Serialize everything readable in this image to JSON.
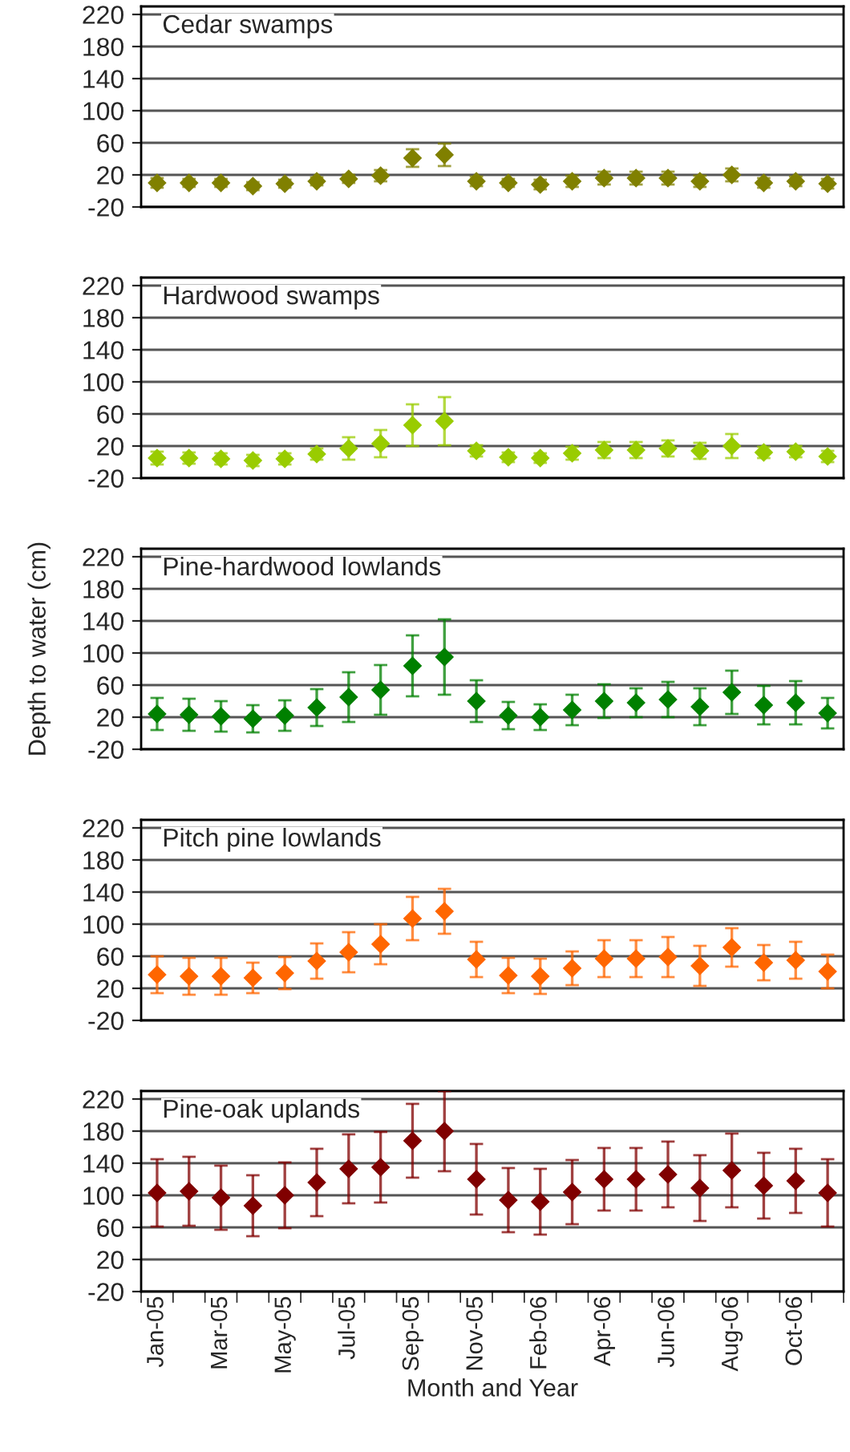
{
  "chart_data": [
    {
      "type": "scatter",
      "title": "Cedar swamps",
      "categories": [
        null,
        null,
        null,
        null,
        null,
        null,
        null,
        null,
        null,
        null,
        null,
        null,
        null,
        null,
        null,
        null,
        null,
        null,
        null,
        null,
        null,
        null
      ],
      "series": [
        {
          "color": "#808000",
          "values": [
            10,
            10,
            10,
            6,
            9,
            12,
            15,
            19,
            41,
            45,
            12,
            10,
            8,
            12,
            16,
            16,
            16,
            12,
            20,
            10,
            12,
            9
          ],
          "errors": [
            6,
            5,
            5,
            5,
            5,
            5,
            5,
            7,
            11,
            14,
            6,
            5,
            6,
            7,
            8,
            8,
            8,
            7,
            8,
            6,
            6,
            6
          ]
        }
      ],
      "ylim": [
        -20,
        230
      ],
      "yticks": [
        -20,
        20,
        60,
        100,
        140,
        180,
        220
      ],
      "grid": "y",
      "marker": "diamond",
      "tick_labels": "y"
    },
    {
      "type": "scatter",
      "title": "Hardwood swamps",
      "categories": [
        null,
        null,
        null,
        null,
        null,
        null,
        null,
        null,
        null,
        null,
        null,
        null,
        null,
        null,
        null,
        null,
        null,
        null,
        null,
        null,
        null,
        null
      ],
      "series": [
        {
          "color": "#99cc00",
          "values": [
            5,
            5,
            4,
            2,
            4,
            10,
            17,
            23,
            46,
            51,
            14,
            6,
            5,
            11,
            15,
            15,
            17,
            14,
            20,
            12,
            13,
            7
          ],
          "errors": [
            8,
            7,
            7,
            7,
            7,
            7,
            14,
            17,
            26,
            30,
            7,
            6,
            6,
            8,
            10,
            10,
            10,
            10,
            15,
            7,
            7,
            7
          ]
        }
      ],
      "ylim": [
        -20,
        230
      ],
      "yticks": [
        -20,
        20,
        60,
        100,
        140,
        180,
        220
      ],
      "grid": "y",
      "marker": "diamond",
      "tick_labels": "y"
    },
    {
      "type": "scatter",
      "title": "Pine-hardwood lowlands",
      "ylabel": "Depth to water (cm)",
      "categories": [
        null,
        null,
        null,
        null,
        null,
        null,
        null,
        null,
        null,
        null,
        null,
        null,
        null,
        null,
        null,
        null,
        null,
        null,
        null,
        null,
        null,
        null
      ],
      "series": [
        {
          "color": "#008000",
          "values": [
            24,
            23,
            21,
            18,
            22,
            32,
            45,
            54,
            84,
            95,
            40,
            22,
            20,
            29,
            40,
            38,
            42,
            33,
            51,
            35,
            38,
            25
          ],
          "errors": [
            20,
            20,
            19,
            17,
            19,
            23,
            31,
            31,
            38,
            47,
            26,
            17,
            16,
            19,
            21,
            18,
            22,
            23,
            27,
            24,
            27,
            19
          ]
        }
      ],
      "ylim": [
        -20,
        230
      ],
      "yticks": [
        -20,
        20,
        60,
        100,
        140,
        180,
        220
      ],
      "grid": "y",
      "marker": "diamond",
      "tick_labels": "y"
    },
    {
      "type": "scatter",
      "title": "Pitch pine lowlands",
      "categories": [
        null,
        null,
        null,
        null,
        null,
        null,
        null,
        null,
        null,
        null,
        null,
        null,
        null,
        null,
        null,
        null,
        null,
        null,
        null,
        null,
        null,
        null
      ],
      "series": [
        {
          "color": "#ff6600",
          "values": [
            37,
            35,
            35,
            33,
            39,
            54,
            65,
            75,
            107,
            116,
            56,
            36,
            35,
            45,
            57,
            57,
            59,
            48,
            71,
            52,
            55,
            41
          ],
          "errors": [
            23,
            23,
            23,
            19,
            20,
            22,
            25,
            25,
            27,
            28,
            22,
            22,
            22,
            21,
            23,
            23,
            25,
            25,
            24,
            22,
            23,
            21
          ]
        }
      ],
      "ylim": [
        -20,
        230
      ],
      "yticks": [
        -20,
        20,
        60,
        100,
        140,
        180,
        220
      ],
      "grid": "y",
      "marker": "diamond",
      "tick_labels": "y"
    },
    {
      "type": "scatter",
      "title": "Pine-oak uplands",
      "xlabel": "Month and Year",
      "categories": [
        "Jan-05",
        null,
        "Mar-05",
        null,
        "May-05",
        null,
        "Jul-05",
        null,
        "Sep-05",
        null,
        "Nov-05",
        null,
        "Feb-06",
        null,
        "Apr-06",
        null,
        "Jun-06",
        null,
        "Aug-06",
        null,
        "Oct-06",
        null
      ],
      "series": [
        {
          "color": "#800000",
          "values": [
            103,
            105,
            97,
            87,
            100,
            116,
            133,
            135,
            168,
            180,
            120,
            94,
            92,
            104,
            120,
            120,
            126,
            109,
            131,
            112,
            118,
            103
          ],
          "errors": [
            42,
            43,
            40,
            38,
            41,
            42,
            43,
            44,
            46,
            50,
            44,
            40,
            41,
            40,
            39,
            39,
            41,
            41,
            46,
            41,
            40,
            42
          ]
        }
      ],
      "ylim": [
        -20,
        230
      ],
      "yticks": [
        -20,
        20,
        60,
        100,
        140,
        180,
        220
      ],
      "grid": "y",
      "marker": "diamond"
    }
  ]
}
